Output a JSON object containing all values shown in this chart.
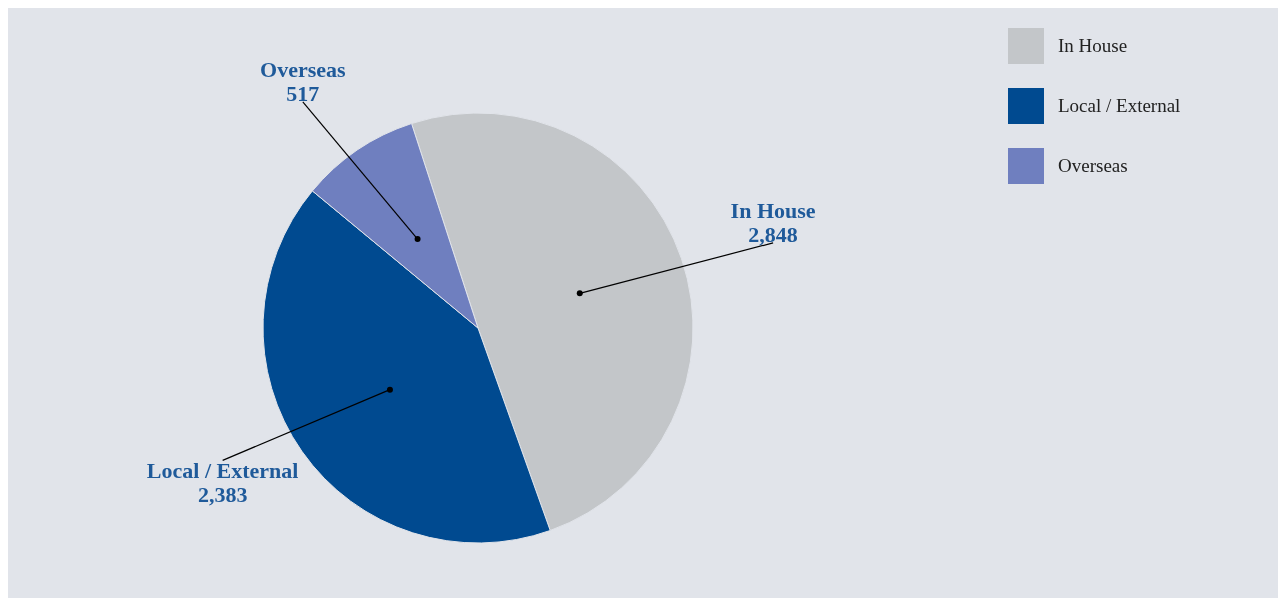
{
  "chart_data": {
    "type": "pie",
    "categories": [
      "In House",
      "Local / External",
      "Overseas"
    ],
    "values": [
      2848,
      2383,
      517
    ],
    "colors": [
      "#c3c6c9",
      "#004a90",
      "#6f7fbf"
    ],
    "value_labels": [
      "2,848",
      "2,383",
      "517"
    ],
    "legend": "top right"
  }
}
